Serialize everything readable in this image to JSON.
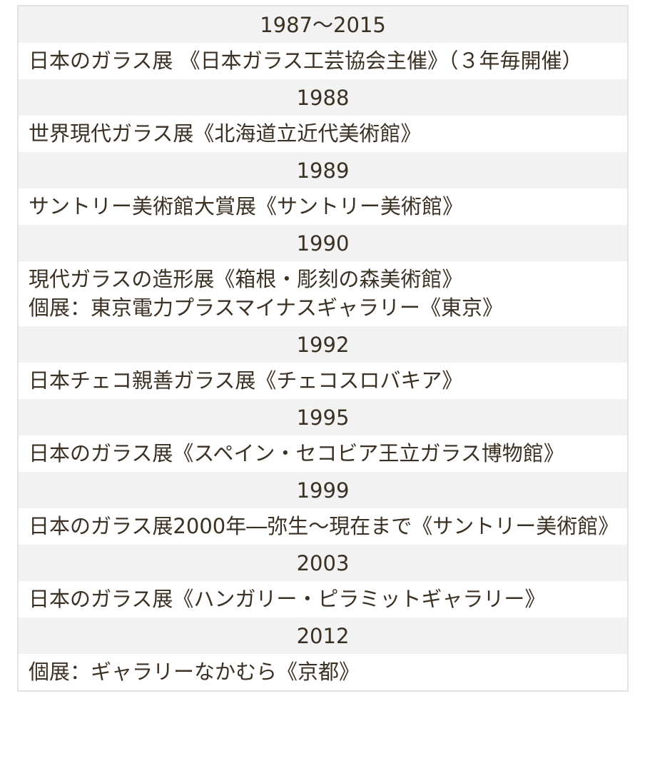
{
  "rows": [
    {
      "year": "1987～2015",
      "entries": [
        "日本のガラス展 《日本ガラス工芸協会主催》（３年毎開催）"
      ]
    },
    {
      "year": "1988",
      "entries": [
        "世界現代ガラス展《北海道立近代美術館》"
      ]
    },
    {
      "year": "1989",
      "entries": [
        "サントリー美術館大賞展《サントリー美術館》"
      ]
    },
    {
      "year": "1990",
      "entries": [
        "現代ガラスの造形展《箱根・彫刻の森美術館》",
        "個展：東京電力プラスマイナスギャラリー《東京》"
      ]
    },
    {
      "year": "1992",
      "entries": [
        "日本チェコ親善ガラス展《チェコスロバキア》"
      ]
    },
    {
      "year": "1995",
      "entries": [
        "日本のガラス展《スペイン・セコビア王立ガラス博物館》"
      ]
    },
    {
      "year": "1999",
      "entries": [
        "日本のガラス展2000年―弥生～現在まで《サントリー美術館》"
      ]
    },
    {
      "year": "2003",
      "entries": [
        "日本のガラス展《ハンガリー・ピラミットギャラリー》"
      ]
    },
    {
      "year": "2012",
      "entries": [
        "個展：ギャラリーなかむら《京都》"
      ]
    }
  ],
  "colors": {
    "text": "#3b3024",
    "year_row_bg": "#f2f2f2",
    "border": "#e2e2e2"
  }
}
